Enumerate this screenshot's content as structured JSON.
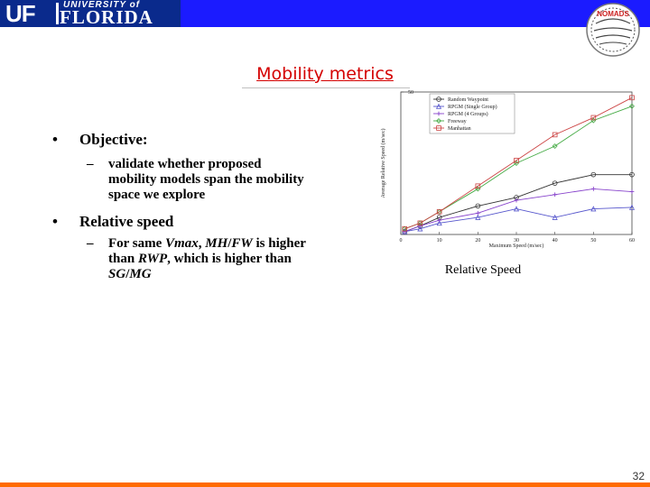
{
  "header": {
    "logo_mark": "UF",
    "logo_university": "UNIVERSITY of",
    "logo_florida": "FLORIDA",
    "seal_text": "NOMADS",
    "band_color": "#1b1bff",
    "logo_color": "#0a2a8c"
  },
  "slide": {
    "title": "Mobility metrics",
    "bullets": [
      {
        "bullet": "•",
        "heading": "Objective:",
        "subs": [
          {
            "dash": "–",
            "lines": [
              "validate whether proposed",
              "mobility models span the mobility",
              "space we explore"
            ]
          }
        ]
      },
      {
        "bullet": "•",
        "heading": "Relative speed",
        "subs": [
          {
            "dash": "–",
            "lines_html_parts": [
              [
                "For same ",
                "Vmax",
                ", ",
                "MH",
                "/",
                "FW",
                " is higher"
              ],
              [
                "than ",
                "RWP",
                ", which is higher than"
              ],
              [
                "SG",
                "/",
                "MG"
              ]
            ]
          }
        ]
      }
    ],
    "chart_caption": "Relative Speed",
    "page_number": "32"
  },
  "chart_data": {
    "type": "line",
    "xlabel": "Maximum Speed (m/sec)",
    "ylabel": "Average Relative Speed (m/sec)",
    "x": [
      1,
      5,
      10,
      20,
      30,
      40,
      50,
      60
    ],
    "xticks": [
      "0",
      "10",
      "20",
      "30",
      "40",
      "50",
      "60"
    ],
    "xtick_values": [
      0,
      10,
      20,
      30,
      40,
      50,
      60
    ],
    "xlim": [
      0,
      60
    ],
    "ylim": [
      0,
      50
    ],
    "yticks": [
      "50"
    ],
    "legend_position": "top-left",
    "series": [
      {
        "name": "Random Waypoint",
        "marker": "circle",
        "color": "#333333",
        "values": [
          1,
          3,
          6,
          10,
          13,
          18,
          21,
          21
        ]
      },
      {
        "name": "RPGM (Single Group)",
        "marker": "triangle",
        "color": "#5555cc",
        "values": [
          1,
          2,
          4,
          6,
          9,
          6,
          9,
          9.5
        ]
      },
      {
        "name": "RPGM (4 Groups)",
        "marker": "plus",
        "color": "#8844cc",
        "values": [
          1,
          3,
          5,
          7.5,
          12,
          14,
          16,
          15
        ]
      },
      {
        "name": "Freeway",
        "marker": "diamond",
        "color": "#44aa44",
        "values": [
          2,
          4,
          8,
          16,
          25,
          31,
          40,
          45
        ]
      },
      {
        "name": "Manhattan",
        "marker": "square",
        "color": "#cc4444",
        "values": [
          2,
          4,
          8,
          17,
          26,
          35,
          41,
          48
        ]
      }
    ]
  }
}
